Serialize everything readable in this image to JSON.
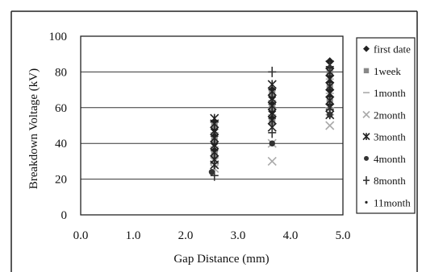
{
  "chart_data": {
    "type": "scatter",
    "xlabel": "Gap Distance (mm)",
    "ylabel": "Breakdown Voltage (kV)",
    "xlim": [
      0.0,
      5.0
    ],
    "ylim": [
      0,
      100
    ],
    "x_ticks": [
      "0.0",
      "1.0",
      "2.0",
      "3.0",
      "4.0",
      "5.0"
    ],
    "y_ticks": [
      "0",
      "20",
      "40",
      "60",
      "80",
      "100"
    ],
    "grid": "horizontal",
    "legend_position": "right",
    "series": [
      {
        "name": "first date",
        "marker": "diamond",
        "color": "#222222",
        "points": [
          [
            2.55,
            52
          ],
          [
            2.55,
            48
          ],
          [
            2.55,
            44
          ],
          [
            2.55,
            40
          ],
          [
            2.55,
            36
          ],
          [
            2.55,
            32
          ],
          [
            3.65,
            70
          ],
          [
            3.65,
            66
          ],
          [
            3.65,
            62
          ],
          [
            3.65,
            58
          ],
          [
            3.65,
            54
          ],
          [
            4.75,
            86
          ],
          [
            4.75,
            82
          ],
          [
            4.75,
            78
          ],
          [
            4.75,
            74
          ],
          [
            4.75,
            70
          ],
          [
            4.75,
            66
          ],
          [
            4.75,
            62
          ]
        ]
      },
      {
        "name": "1week",
        "marker": "square",
        "color": "#888888",
        "points": [
          [
            2.55,
            50
          ],
          [
            2.55,
            42
          ],
          [
            2.55,
            34
          ],
          [
            3.65,
            68
          ],
          [
            3.65,
            60
          ],
          [
            3.65,
            52
          ],
          [
            4.75,
            80
          ],
          [
            4.75,
            72
          ],
          [
            4.75,
            64
          ]
        ]
      },
      {
        "name": "1month",
        "marker": "dash",
        "color": "#aaaaaa",
        "points": [
          [
            2.55,
            46
          ],
          [
            2.55,
            38
          ],
          [
            3.65,
            64
          ],
          [
            3.65,
            56
          ],
          [
            4.75,
            76
          ],
          [
            4.75,
            68
          ]
        ]
      },
      {
        "name": "2month",
        "marker": "x",
        "color": "#aaaaaa",
        "points": [
          [
            2.55,
            30
          ],
          [
            2.55,
            26
          ],
          [
            3.65,
            40
          ],
          [
            3.65,
            30
          ],
          [
            4.75,
            50
          ],
          [
            4.75,
            58
          ]
        ]
      },
      {
        "name": "3month",
        "marker": "asterisk",
        "color": "#222222",
        "points": [
          [
            2.55,
            54
          ],
          [
            2.55,
            51
          ],
          [
            2.55,
            47
          ],
          [
            2.55,
            43
          ],
          [
            2.55,
            39
          ],
          [
            2.55,
            35
          ],
          [
            2.55,
            31
          ],
          [
            2.55,
            28
          ],
          [
            3.65,
            73
          ],
          [
            3.65,
            69
          ],
          [
            3.65,
            65
          ],
          [
            3.65,
            61
          ],
          [
            3.65,
            57
          ],
          [
            3.65,
            53
          ],
          [
            3.65,
            49
          ],
          [
            4.75,
            84
          ],
          [
            4.75,
            80
          ],
          [
            4.75,
            76
          ],
          [
            4.75,
            72
          ],
          [
            4.75,
            68
          ],
          [
            4.75,
            64
          ],
          [
            4.75,
            60
          ],
          [
            4.75,
            56
          ]
        ]
      },
      {
        "name": "4month",
        "marker": "circle",
        "color": "#333333",
        "points": [
          [
            2.5,
            24
          ],
          [
            3.65,
            40
          ],
          [
            4.75,
            56
          ]
        ]
      },
      {
        "name": "8month",
        "marker": "plus",
        "color": "#333333",
        "points": [
          [
            2.55,
            22
          ],
          [
            3.65,
            80
          ],
          [
            3.65,
            46
          ],
          [
            4.75,
            83
          ],
          [
            4.75,
            59
          ]
        ]
      },
      {
        "name": "11month",
        "marker": "dot",
        "color": "#222222",
        "points": [
          [
            2.55,
            45
          ],
          [
            3.65,
            55
          ],
          [
            4.75,
            70
          ]
        ]
      }
    ]
  }
}
